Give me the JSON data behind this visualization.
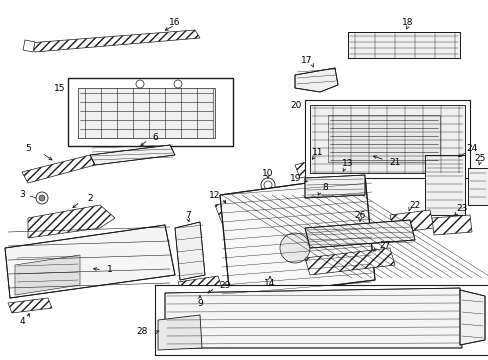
{
  "bg_color": "#ffffff",
  "lc": "#1a1a1a",
  "lw": 0.6,
  "fig_w": 4.89,
  "fig_h": 3.6,
  "dpi": 100,
  "xlim": [
    0,
    489
  ],
  "ylim": [
    0,
    360
  ]
}
